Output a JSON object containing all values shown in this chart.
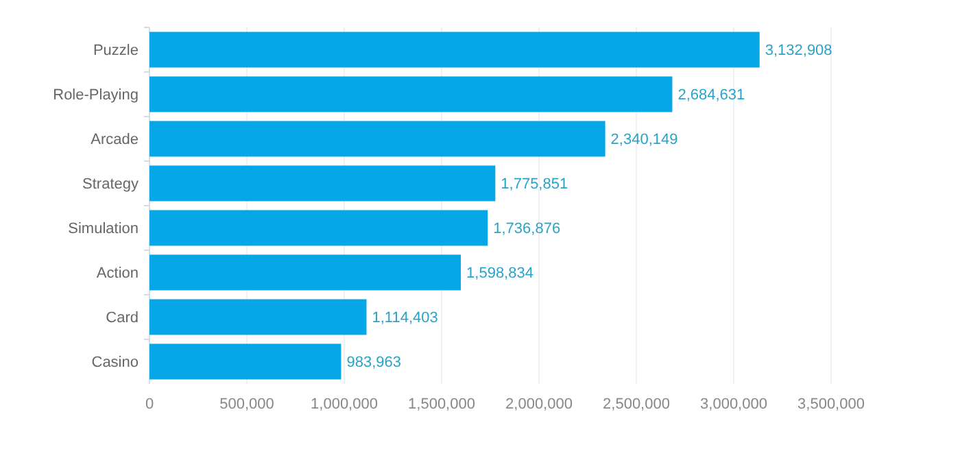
{
  "chart_data": {
    "type": "bar",
    "orientation": "horizontal",
    "categories": [
      "Puzzle",
      "Role-Playing",
      "Arcade",
      "Strategy",
      "Simulation",
      "Action",
      "Card",
      "Casino"
    ],
    "values": [
      3132908,
      2684631,
      2340149,
      1775851,
      1736876,
      1598834,
      1114403,
      983963
    ],
    "value_labels": [
      "3,132,908",
      "2,684,631",
      "2,340,149",
      "1,775,851",
      "1,736,876",
      "1,598,834",
      "1,114,403",
      "983,963"
    ],
    "color": "#07a6e6",
    "xlim": [
      0,
      3500000
    ],
    "xticks": [
      {
        "value": 0,
        "label": "0"
      },
      {
        "value": 500000,
        "label": "500,000"
      },
      {
        "value": 1000000,
        "label": "1,000,000"
      },
      {
        "value": 1500000,
        "label": "1,500,000"
      },
      {
        "value": 2000000,
        "label": "2,000,000"
      },
      {
        "value": 2500000,
        "label": "2,500,000"
      },
      {
        "value": 3000000,
        "label": "3,000,000"
      },
      {
        "value": 3500000,
        "label": "3,500,000"
      }
    ],
    "grid": "x"
  }
}
